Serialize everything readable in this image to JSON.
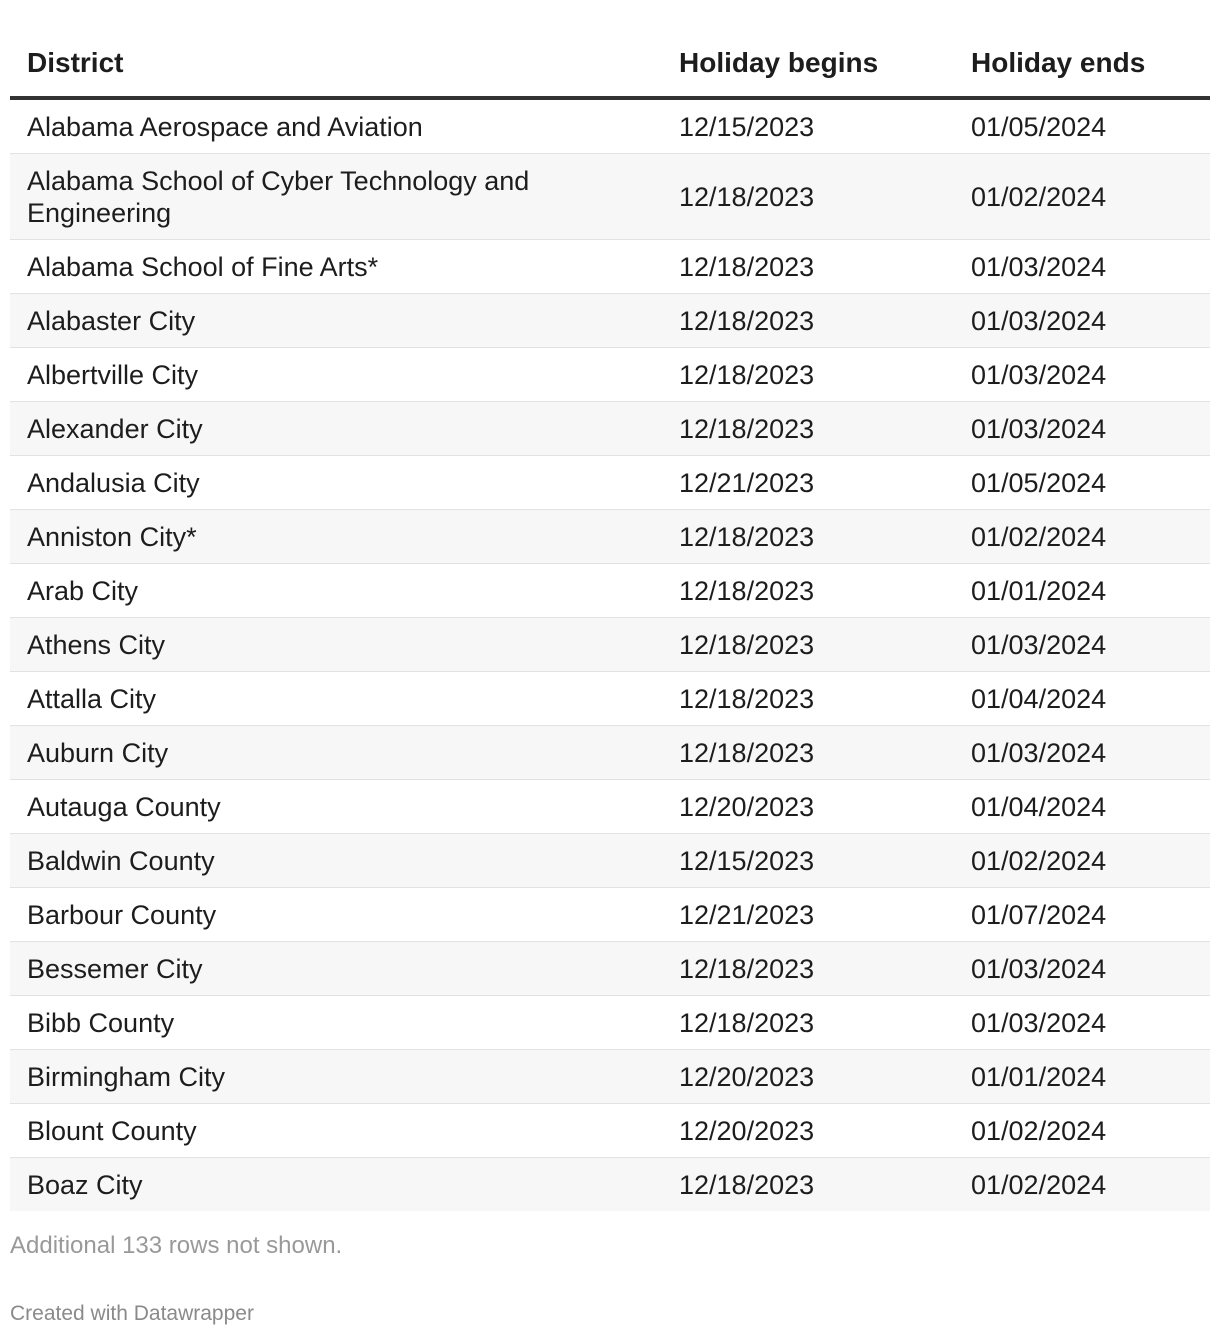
{
  "table": {
    "headers": [
      "District",
      "Holiday begins",
      "Holiday ends"
    ],
    "rows": [
      [
        "Alabama Aerospace and Aviation",
        "12/15/2023",
        "01/05/2024"
      ],
      [
        "Alabama School of Cyber Technology and Engineering",
        "12/18/2023",
        "01/02/2024"
      ],
      [
        "Alabama School of Fine Arts*",
        "12/18/2023",
        "01/03/2024"
      ],
      [
        "Alabaster City",
        "12/18/2023",
        "01/03/2024"
      ],
      [
        "Albertville City",
        "12/18/2023",
        "01/03/2024"
      ],
      [
        "Alexander City",
        "12/18/2023",
        "01/03/2024"
      ],
      [
        "Andalusia City",
        "12/21/2023",
        "01/05/2024"
      ],
      [
        "Anniston City*",
        "12/18/2023",
        "01/02/2024"
      ],
      [
        "Arab City",
        "12/18/2023",
        "01/01/2024"
      ],
      [
        "Athens City",
        "12/18/2023",
        "01/03/2024"
      ],
      [
        "Attalla City",
        "12/18/2023",
        "01/04/2024"
      ],
      [
        "Auburn City",
        "12/18/2023",
        "01/03/2024"
      ],
      [
        "Autauga County",
        "12/20/2023",
        "01/04/2024"
      ],
      [
        "Baldwin County",
        "12/15/2023",
        "01/02/2024"
      ],
      [
        "Barbour County",
        "12/21/2023",
        "01/07/2024"
      ],
      [
        "Bessemer City",
        "12/18/2023",
        "01/03/2024"
      ],
      [
        "Bibb County",
        "12/18/2023",
        "01/03/2024"
      ],
      [
        "Birmingham City",
        "12/20/2023",
        "01/01/2024"
      ],
      [
        "Blount County",
        "12/20/2023",
        "01/02/2024"
      ],
      [
        "Boaz City",
        "12/18/2023",
        "01/02/2024"
      ]
    ]
  },
  "footer": {
    "note": "Additional 133 rows not shown.",
    "credit": "Created with Datawrapper"
  },
  "colors": {
    "header_rule": "#333333",
    "stripe": "#f7f7f7",
    "muted_text": "#999999"
  }
}
